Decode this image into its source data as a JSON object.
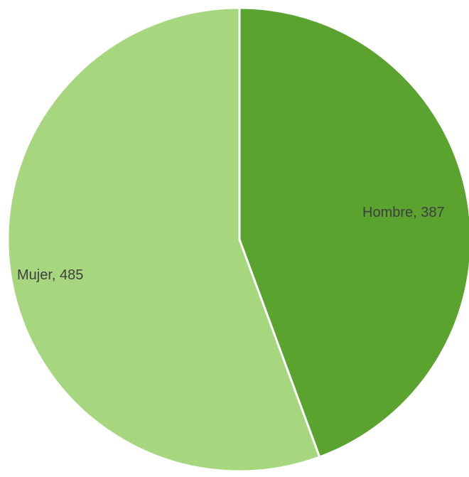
{
  "chart_data": {
    "type": "pie",
    "slices": [
      {
        "label": "Hombre",
        "value": 387,
        "color": "#5aa32f",
        "display": "Hombre, 387"
      },
      {
        "label": "Mujer",
        "value": 485,
        "color": "#a6d67e",
        "display": "Mujer, 485"
      }
    ],
    "start_angle_deg": 0,
    "direction": "clockwise",
    "title": "",
    "legend": "none"
  }
}
